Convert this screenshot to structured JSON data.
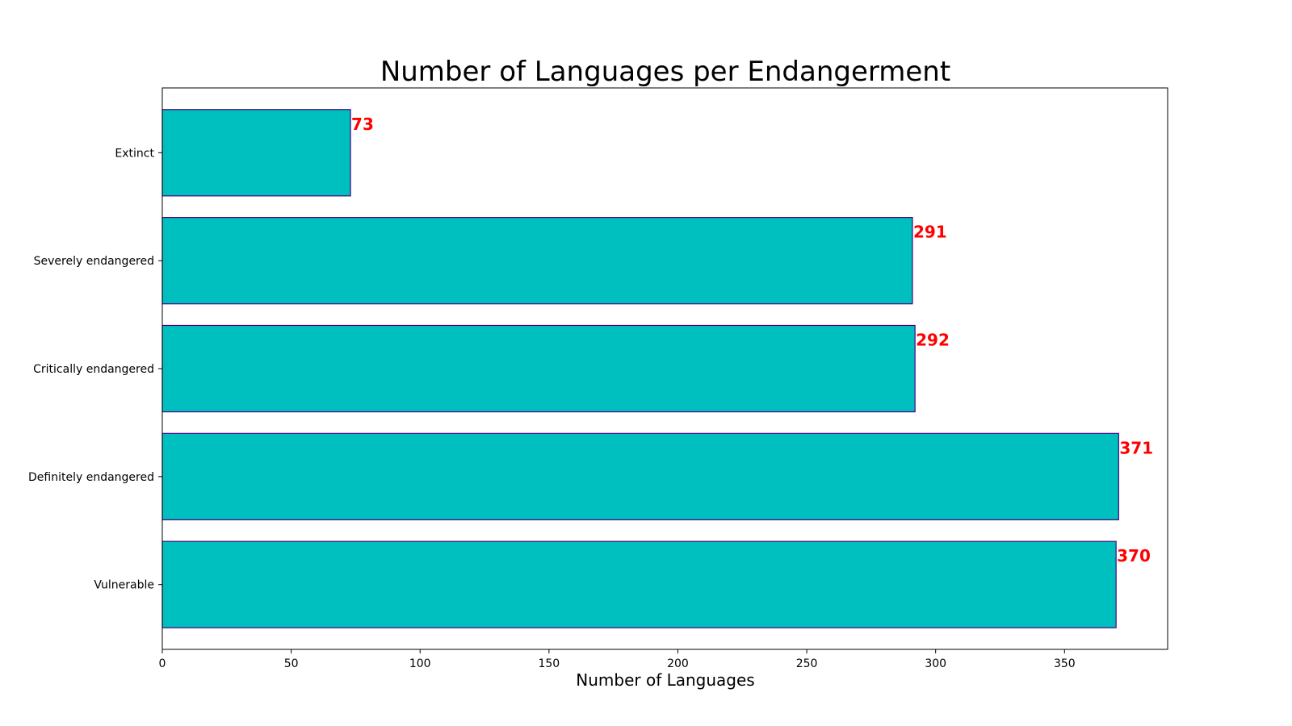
{
  "chart_data": {
    "type": "bar",
    "orientation": "horizontal",
    "title": "Number of Languages per Endangerment",
    "xlabel": "Number of Languages",
    "ylabel": "",
    "categories": [
      "Vulnerable",
      "Definitely endangered",
      "Critically endangered",
      "Severely endangered",
      "Extinct"
    ],
    "values": [
      370,
      371,
      292,
      291,
      73
    ],
    "xlim": [
      0,
      390
    ],
    "x_ticks": [
      0,
      50,
      100,
      150,
      200,
      250,
      300,
      350
    ],
    "grid": false,
    "legend": "none",
    "colors": {
      "bar_fill": "#00bfbf",
      "bar_edge": "#4b0082",
      "data_label": "#ff0000",
      "axes": "#000000"
    }
  }
}
